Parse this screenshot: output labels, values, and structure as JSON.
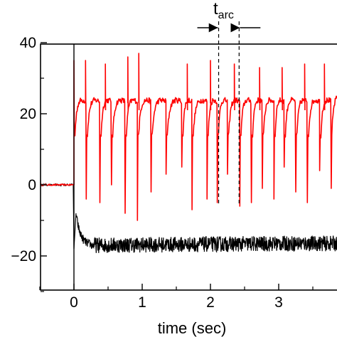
{
  "chart_data": {
    "type": "line",
    "title": "",
    "xlabel": "time (sec)",
    "ylabel": "",
    "xlim": [
      -0.5,
      3.85
    ],
    "ylim": [
      -30,
      40
    ],
    "x_ticks": [
      0,
      1,
      2,
      3
    ],
    "y_ticks": [
      -20,
      0,
      20,
      40
    ],
    "x_tick_labels": [
      "0",
      "1",
      "2",
      "3"
    ],
    "y_tick_labels": [
      "−20",
      "0",
      "20",
      "40"
    ],
    "grid": false,
    "legend": "none",
    "series": [
      {
        "color": "#ff0000",
        "baseline": 0,
        "plateau": 25,
        "spike_times": [
          0.0,
          0.17,
          0.46,
          0.79,
          0.95,
          1.66,
          2.0,
          2.35,
          2.72,
          3.05,
          3.38,
          3.67
        ],
        "spike_peaks": [
          35,
          35,
          34,
          36,
          37,
          34,
          35,
          34,
          33,
          33,
          34,
          34
        ],
        "dip_times": [
          0.18,
          0.38,
          0.55,
          0.75,
          0.93,
          1.13,
          1.35,
          1.58,
          1.73,
          1.95,
          2.1,
          2.25,
          2.43,
          2.6,
          2.76,
          2.93,
          3.08,
          3.25,
          3.42,
          3.6,
          3.77
        ],
        "dip_minima": [
          -4,
          -5,
          0,
          -8,
          -10,
          -2,
          3,
          5,
          -7,
          -4,
          -5,
          3,
          -6,
          -5,
          -1,
          -4,
          5,
          -2,
          -5,
          4,
          -1
        ]
      },
      {
        "color": "#000000",
        "baseline": 0,
        "onset_min": -18,
        "initial_peak": -8,
        "steady": -17,
        "settled": -16.5
      }
    ],
    "annotations": {
      "t_main": "t",
      "t_sub": "arc",
      "dashed_lines_at": [
        2.12,
        2.42
      ]
    }
  }
}
